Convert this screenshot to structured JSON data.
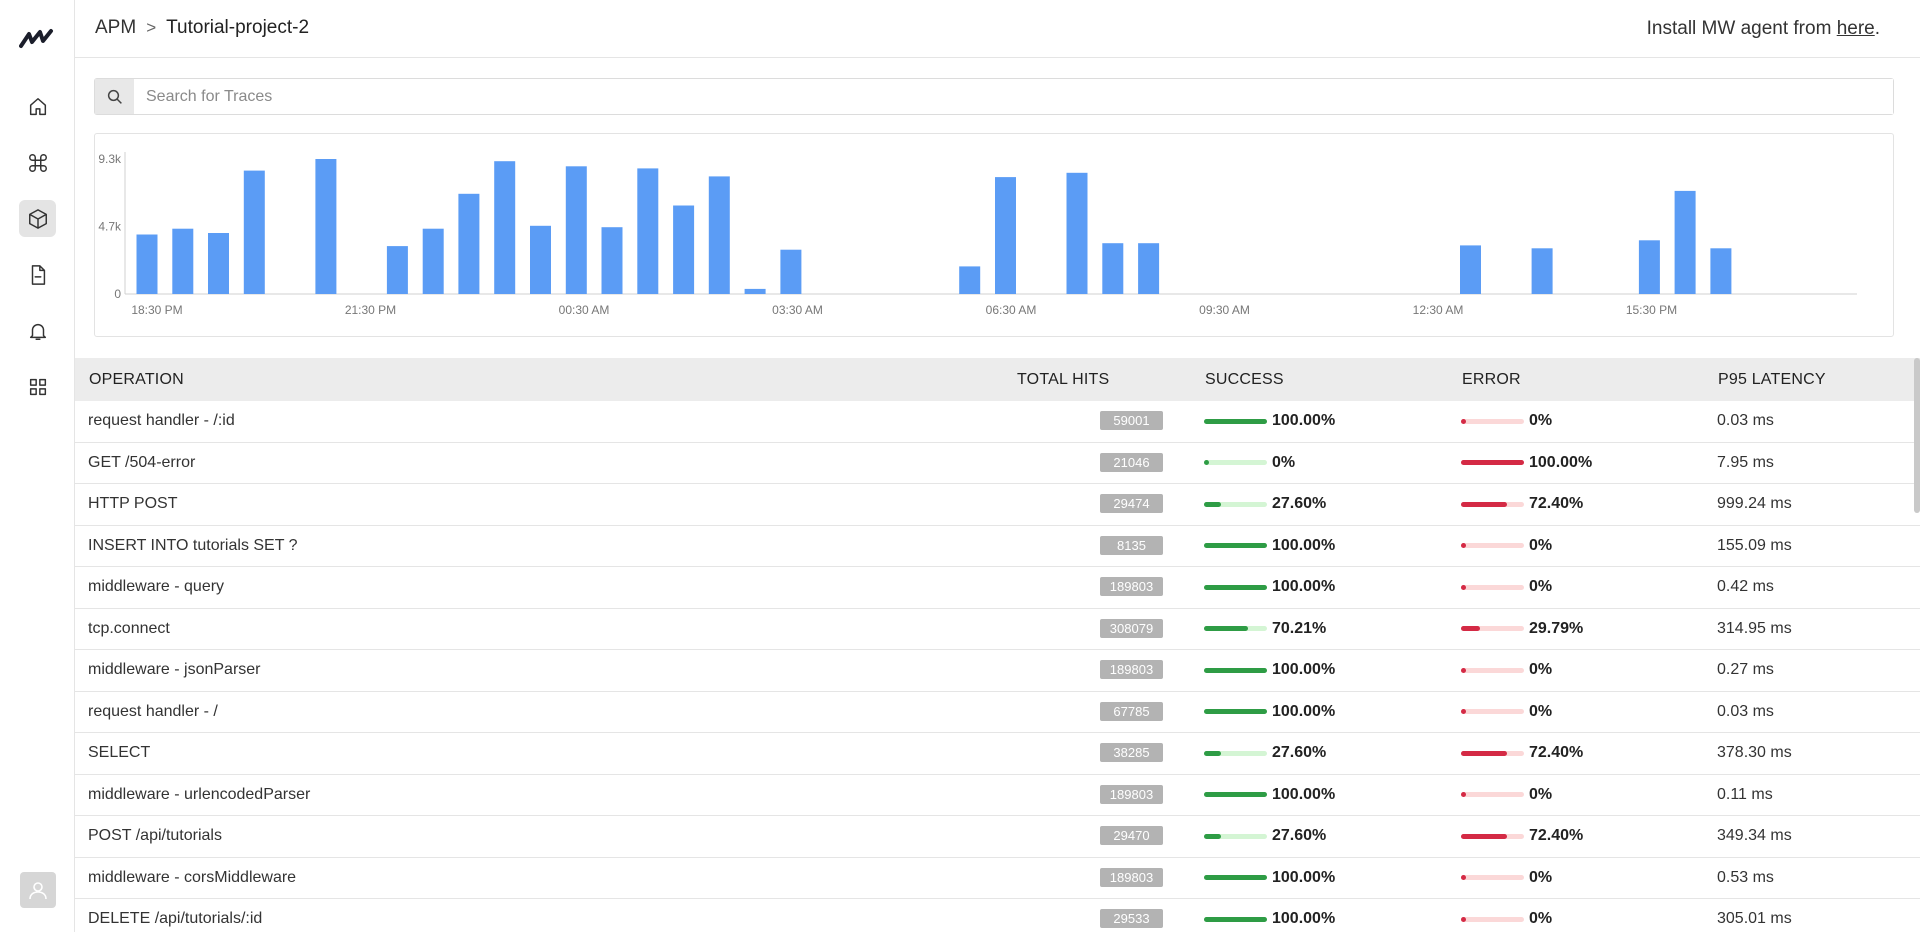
{
  "header": {
    "breadcrumb_root": "APM",
    "breadcrumb_sep": ">",
    "breadcrumb_current": "Tutorial-project-2",
    "install_prefix": "Install MW agent from ",
    "install_link": "here",
    "install_suffix": "."
  },
  "sidebar": {
    "items": [
      {
        "name": "home-icon"
      },
      {
        "name": "command-icon"
      },
      {
        "name": "cube-icon",
        "active": true
      },
      {
        "name": "document-icon"
      },
      {
        "name": "bell-icon"
      },
      {
        "name": "grid-icon"
      }
    ]
  },
  "search": {
    "placeholder": "Search for Traces"
  },
  "chart_data": {
    "type": "bar",
    "y_ticks": [
      "9.3k",
      "4.7k",
      "0"
    ],
    "ylim": [
      0,
      9300
    ],
    "x_ticks": [
      "18:30 PM",
      "21:30 PM",
      "00:30 AM",
      "03:30 AM",
      "06:30 AM",
      "09:30 AM",
      "12:30 AM",
      "15:30 PM"
    ],
    "values": [
      4100,
      4500,
      4200,
      8500,
      0,
      9300,
      0,
      3300,
      4500,
      6900,
      9150,
      4700,
      8800,
      4600,
      8650,
      6100,
      8100,
      350,
      3050,
      0,
      0,
      0,
      0,
      1900,
      8050,
      0,
      8350,
      3500,
      3500,
      0,
      0,
      0,
      0,
      0,
      0,
      0,
      0,
      3350,
      0,
      3150,
      0,
      0,
      3700,
      7100,
      3150,
      0,
      0,
      0
    ]
  },
  "table": {
    "headers": {
      "operation": "OPERATION",
      "hits": "TOTAL HITS",
      "success": "SUCCESS",
      "error": "ERROR",
      "latency": "P95 LATENCY"
    },
    "rows": [
      {
        "operation": "request handler - /:id",
        "hits": "59001",
        "success": "100.00%",
        "success_frac": 1.0,
        "error": "0%",
        "error_frac": 0.0,
        "latency": "0.03 ms"
      },
      {
        "operation": "GET /504-error",
        "hits": "21046",
        "success": "0%",
        "success_frac": 0.0,
        "error": "100.00%",
        "error_frac": 1.0,
        "latency": "7.95 ms"
      },
      {
        "operation": "HTTP POST",
        "hits": "29474",
        "success": "27.60%",
        "success_frac": 0.276,
        "error": "72.40%",
        "error_frac": 0.724,
        "latency": "999.24 ms"
      },
      {
        "operation": "INSERT INTO tutorials SET ?",
        "hits": "8135",
        "success": "100.00%",
        "success_frac": 1.0,
        "error": "0%",
        "error_frac": 0.0,
        "latency": "155.09 ms"
      },
      {
        "operation": "middleware - query",
        "hits": "189803",
        "success": "100.00%",
        "success_frac": 1.0,
        "error": "0%",
        "error_frac": 0.0,
        "latency": "0.42 ms"
      },
      {
        "operation": "tcp.connect",
        "hits": "308079",
        "success": "70.21%",
        "success_frac": 0.7021,
        "error": "29.79%",
        "error_frac": 0.2979,
        "latency": "314.95 ms"
      },
      {
        "operation": "middleware - jsonParser",
        "hits": "189803",
        "success": "100.00%",
        "success_frac": 1.0,
        "error": "0%",
        "error_frac": 0.0,
        "latency": "0.27 ms"
      },
      {
        "operation": "request handler - /",
        "hits": "67785",
        "success": "100.00%",
        "success_frac": 1.0,
        "error": "0%",
        "error_frac": 0.0,
        "latency": "0.03 ms"
      },
      {
        "operation": "SELECT",
        "hits": "38285",
        "success": "27.60%",
        "success_frac": 0.276,
        "error": "72.40%",
        "error_frac": 0.724,
        "latency": "378.30 ms"
      },
      {
        "operation": "middleware - urlencodedParser",
        "hits": "189803",
        "success": "100.00%",
        "success_frac": 1.0,
        "error": "0%",
        "error_frac": 0.0,
        "latency": "0.11 ms"
      },
      {
        "operation": "POST /api/tutorials",
        "hits": "29470",
        "success": "27.60%",
        "success_frac": 0.276,
        "error": "72.40%",
        "error_frac": 0.724,
        "latency": "349.34 ms"
      },
      {
        "operation": "middleware - corsMiddleware",
        "hits": "189803",
        "success": "100.00%",
        "success_frac": 1.0,
        "error": "0%",
        "error_frac": 0.0,
        "latency": "0.53 ms"
      },
      {
        "operation": "DELETE /api/tutorials/:id",
        "hits": "29533",
        "success": "100.00%",
        "success_frac": 1.0,
        "error": "0%",
        "error_frac": 0.0,
        "latency": "305.01 ms"
      }
    ]
  },
  "colors": {
    "bar": "#5b9cf5",
    "success": "#2e9c45",
    "error": "#d42a45"
  }
}
